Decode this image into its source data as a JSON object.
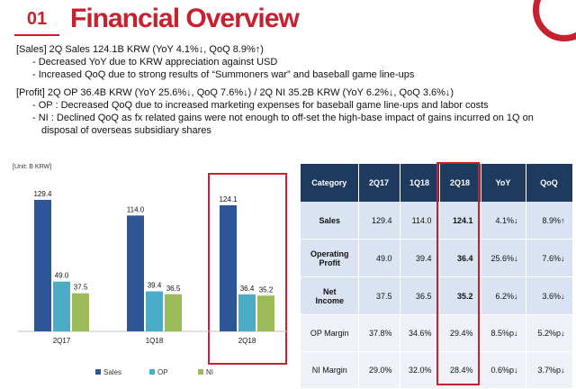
{
  "header": {
    "section_number": "01",
    "title": "Financial Overview"
  },
  "bullets": {
    "sales_head": "[Sales] 2Q Sales 124.1B KRW (YoY 4.1%↓, QoQ 8.9%↑)",
    "sales_items": [
      "-   Decreased YoY due to KRW appreciation against USD",
      "-   Increased QoQ due to strong results of “Summoners war” and baseball game line-ups"
    ],
    "profit_head": "[Profit] 2Q OP 36.4B KRW (YoY 25.6%↓, QoQ 7.6%↓) / 2Q NI 35.2B KRW (YoY 6.2%↓, QoQ 3.6%↓)",
    "profit_items": [
      "-   OP : Decreased QoQ due to increased marketing expenses for baseball game line-ups and labor costs",
      "-   NI : Declined QoQ as fx related gains were not enough to off-set the high-base impact of gains incurred on 1Q on disposal of overseas subsidiary shares"
    ]
  },
  "unit_label": "[Unit: B KRW]",
  "colors": {
    "sales": "#2e5597",
    "op": "#4bacc6",
    "ni": "#9bbb59",
    "accent": "#c8202e",
    "table_header": "#1f3a5f"
  },
  "chart_data": {
    "type": "bar",
    "categories": [
      "2Q17",
      "1Q18",
      "2Q18"
    ],
    "series": [
      {
        "name": "Sales",
        "values": [
          129.4,
          114.0,
          124.1
        ]
      },
      {
        "name": "OP",
        "values": [
          49.0,
          39.4,
          36.4
        ]
      },
      {
        "name": "NI",
        "values": [
          37.5,
          36.5,
          35.2
        ]
      }
    ],
    "value_labels": [
      [
        "129.4",
        "114.0",
        "124.1"
      ],
      [
        "49.0",
        "39.4",
        "36.4"
      ],
      [
        "37.5",
        "36.5",
        "35.2"
      ]
    ],
    "ylim": [
      0,
      140
    ],
    "legend_position": "bottom",
    "highlight_category": "2Q18"
  },
  "table": {
    "headers": [
      "Category",
      "2Q17",
      "1Q18",
      "2Q18",
      "YoY",
      "QoQ"
    ],
    "rows": [
      [
        "Sales",
        "129.4",
        "114.0",
        "124.1",
        "4.1%↓",
        "8.9%↑"
      ],
      [
        "Operating\nProfit",
        "49.0",
        "39.4",
        "36.4",
        "25.6%↓",
        "7.6%↓"
      ],
      [
        "Net\nIncome",
        "37.5",
        "36.5",
        "35.2",
        "6.2%↓",
        "3.6%↓"
      ],
      [
        "OP Margin",
        "37.8%",
        "34.6%",
        "29.4%",
        "8.5%p↓",
        "5.2%p↓"
      ],
      [
        "NI Margin",
        "29.0%",
        "32.0%",
        "28.4%",
        "0.6%p↓",
        "3.7%p↓"
      ]
    ]
  }
}
